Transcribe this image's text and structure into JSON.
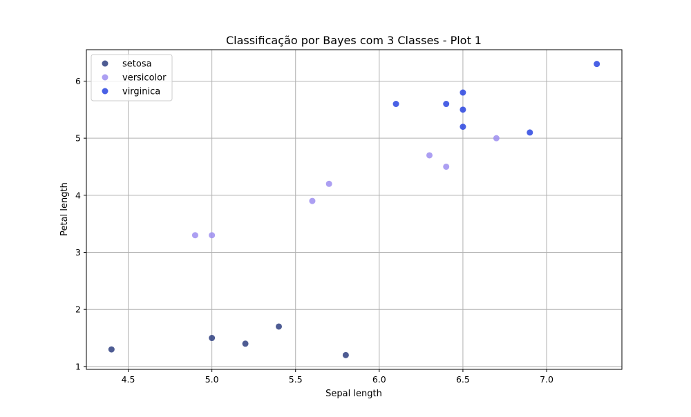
{
  "chart_data": {
    "type": "scatter",
    "title": "Classificação por Bayes com 3 Classes - Plot 1",
    "xlabel": "Sepal length",
    "ylabel": "Petal length",
    "xlim": [
      4.25,
      7.45
    ],
    "ylim": [
      0.95,
      6.55
    ],
    "xticks": [
      4.5,
      5.0,
      5.5,
      6.0,
      6.5,
      7.0
    ],
    "xtick_labels": [
      "4.5",
      "5.0",
      "5.5",
      "6.0",
      "6.5",
      "7.0"
    ],
    "yticks": [
      1,
      2,
      3,
      4,
      5,
      6
    ],
    "ytick_labels": [
      "1",
      "2",
      "3",
      "4",
      "5",
      "6"
    ],
    "grid": true,
    "legend_position": "top-left",
    "series": [
      {
        "name": "setosa",
        "color": "#2f3f80",
        "points": [
          {
            "x": 4.4,
            "y": 1.3
          },
          {
            "x": 5.0,
            "y": 1.5
          },
          {
            "x": 5.2,
            "y": 1.4
          },
          {
            "x": 5.4,
            "y": 1.7
          },
          {
            "x": 5.8,
            "y": 1.2
          }
        ]
      },
      {
        "name": "versicolor",
        "color": "#9d8ef0",
        "points": [
          {
            "x": 4.9,
            "y": 3.3
          },
          {
            "x": 5.0,
            "y": 3.3
          },
          {
            "x": 5.6,
            "y": 3.9
          },
          {
            "x": 5.7,
            "y": 4.2
          },
          {
            "x": 6.3,
            "y": 4.7
          },
          {
            "x": 6.4,
            "y": 4.5
          },
          {
            "x": 6.7,
            "y": 5.0
          }
        ]
      },
      {
        "name": "virginica",
        "color": "#2a45e0",
        "points": [
          {
            "x": 6.1,
            "y": 5.6
          },
          {
            "x": 6.4,
            "y": 5.6
          },
          {
            "x": 6.5,
            "y": 5.8
          },
          {
            "x": 6.5,
            "y": 5.5
          },
          {
            "x": 6.5,
            "y": 5.2
          },
          {
            "x": 6.9,
            "y": 5.1
          },
          {
            "x": 7.3,
            "y": 6.3
          }
        ]
      }
    ]
  }
}
